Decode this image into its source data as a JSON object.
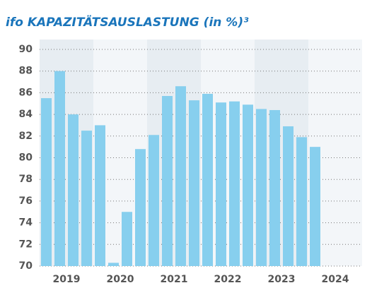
{
  "chart_data": {
    "type": "bar",
    "title": "ifo KAPAZITÄTSAUSLASTUNG (in %)³",
    "groups": [
      "2019",
      "2020",
      "2021",
      "2022",
      "2023",
      "2024"
    ],
    "values": [
      85.5,
      88.0,
      84.0,
      82.5,
      83.0,
      70.3,
      75.0,
      80.8,
      82.1,
      85.7,
      86.6,
      85.3,
      85.9,
      85.1,
      85.2,
      84.9,
      84.5,
      84.4,
      82.9,
      81.9,
      81.0
    ],
    "color": "#87cfee",
    "ylim": [
      70,
      90
    ],
    "yticks": [
      70,
      72,
      74,
      76,
      78,
      80,
      82,
      84,
      86,
      88,
      90
    ],
    "grid": true
  }
}
